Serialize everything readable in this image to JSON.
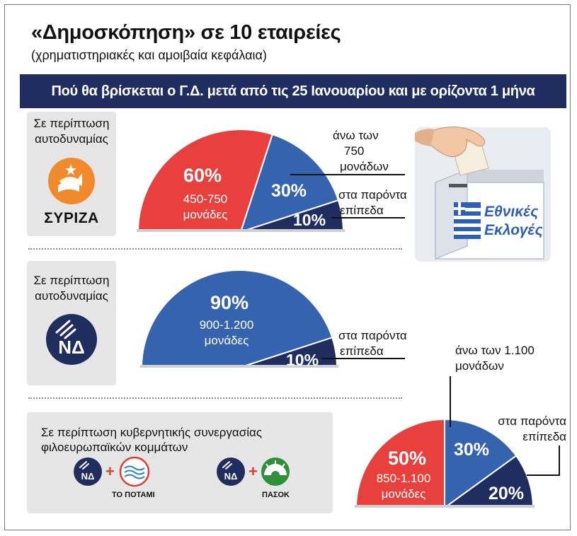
{
  "header": {
    "title": "«Δημοσκόπηση» σε 10 εταιρείες",
    "subtitle": "(χρηματιστηριακές και αμοιβαία κεφάλαια)",
    "banner": "Πού θα βρίσκεται ο Γ.Δ. μετά από τις 25 Ιανουαρίου και με ορίζοντα 1 μήνα"
  },
  "scenarios": {
    "syriza": {
      "line1": "Σε περίπτωση",
      "line2": "αυτοδυναμίας",
      "party": "ΣΥΡΙΖΑ"
    },
    "nd": {
      "line1": "Σε περίπτωση",
      "line2": "αυτοδυναμίας",
      "logo_text": "ΝΔ"
    },
    "coalition": {
      "line1": "Σε περίπτωση κυβερνητικής συνεργασίας",
      "line2": "φιλοευρωπαϊκών κομμάτων",
      "logo_text": "ΝΔ",
      "plus": "+",
      "partner1": "ΤΟ ΠΟΤΑΜΙ",
      "partner2": "ΠΑΣΟΚ"
    }
  },
  "ballot_box": {
    "line1": "Εθνικές",
    "line2": "Εκλογές"
  },
  "colors": {
    "red": "#e8403d",
    "blue": "#3563ae",
    "navy": "#1f2d5f",
    "orange": "#f08a2c",
    "green": "#2f8f3a"
  },
  "chart_data": [
    {
      "type": "pie",
      "scenario": "Σε περίπτωση αυτοδυναμίας ΣΥΡΙΖΑ",
      "slices": [
        {
          "label": "450-750 μονάδες",
          "value": 60,
          "pct": "60%",
          "sub1": "450-750",
          "sub2": "μονάδες",
          "color": "#e8403d"
        },
        {
          "label": "άνω των 750 μονάδων",
          "value": 30,
          "pct": "30%",
          "color": "#3563ae"
        },
        {
          "label": "στα παρόντα επίπεδα",
          "value": 10,
          "pct": "10%",
          "color": "#1f2d5f"
        }
      ],
      "callouts": [
        {
          "line1": "άνω των",
          "line2": "750",
          "line3": "μονάδων"
        },
        {
          "line1": "στα παρόντα",
          "line2": "επίπεδα"
        }
      ]
    },
    {
      "type": "pie",
      "scenario": "Σε περίπτωση αυτοδυναμίας ΝΔ",
      "slices": [
        {
          "label": "900-1.200 μονάδες",
          "value": 90,
          "pct": "90%",
          "sub1": "900-1.200",
          "sub2": "μονάδες",
          "color": "#3563ae"
        },
        {
          "label": "στα παρόντα επίπεδα",
          "value": 10,
          "pct": "10%",
          "color": "#1f2d5f"
        }
      ],
      "callouts": [
        {
          "line1": "στα παρόντα",
          "line2": "επίπεδα"
        }
      ]
    },
    {
      "type": "pie",
      "scenario": "Σε περίπτωση κυβερνητικής συνεργασίας φιλοευρωπαϊκών κομμάτων",
      "slices": [
        {
          "label": "850-1.100 μονάδες",
          "value": 50,
          "pct": "50%",
          "sub1": "850-1.100",
          "sub2": "μονάδες",
          "color": "#e8403d"
        },
        {
          "label": "άνω των 1.100 μονάδων",
          "value": 30,
          "pct": "30%",
          "color": "#3563ae"
        },
        {
          "label": "στα παρόντα επίπεδα",
          "value": 20,
          "pct": "20%",
          "color": "#1f2d5f"
        }
      ],
      "callouts": [
        {
          "line1": "άνω των 1.100",
          "line2": "μονάδων"
        },
        {
          "line1": "στα παρόντα",
          "line2": "επίπεδα"
        }
      ]
    }
  ]
}
